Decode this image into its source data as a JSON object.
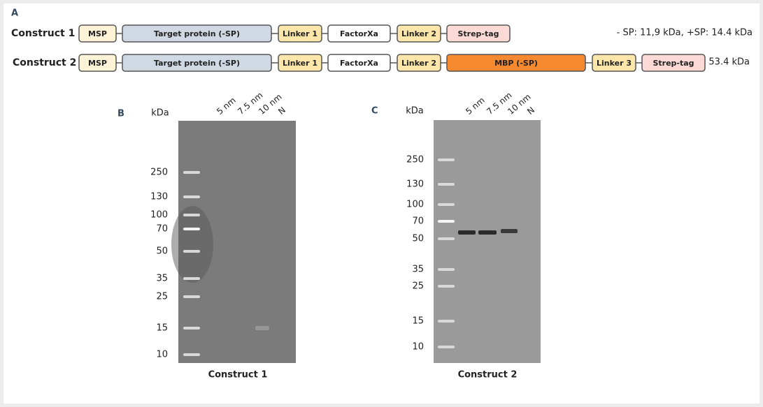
{
  "panel_a": {
    "label": "A",
    "constructs": [
      {
        "name": "Construct 1",
        "domains": [
          "MSP",
          "Target protein (-SP)",
          "Linker 1",
          "FactorXa",
          "Linker 2",
          "Strep-tag"
        ],
        "note": "- SP: 11,9 kDa, +SP: 14.4 kDa"
      },
      {
        "name": "Construct 2",
        "domains": [
          "MSP",
          "Target protein (-SP)",
          "Linker 1",
          "FactorXa",
          "Linker 2",
          "MBP (-SP)",
          "Linker 3",
          "Strep-tag"
        ],
        "note": "53.4 kDa"
      }
    ]
  },
  "gels": [
    {
      "label": "B",
      "unit": "kDa",
      "lanes": [
        "5 nm",
        "7.5 nm",
        "10 nm",
        "N"
      ],
      "markers": [
        "250",
        "130",
        "100",
        "70",
        "50",
        "35",
        "25",
        "15",
        "10"
      ],
      "caption": "Construct 1"
    },
    {
      "label": "C",
      "unit": "kDa",
      "lanes": [
        "5 nm",
        "7.5 nm",
        "10 nm",
        "N"
      ],
      "markers": [
        "250",
        "130",
        "100",
        "70",
        "50",
        "35",
        "25",
        "15",
        "10"
      ],
      "caption": "Construct 2"
    }
  ]
}
